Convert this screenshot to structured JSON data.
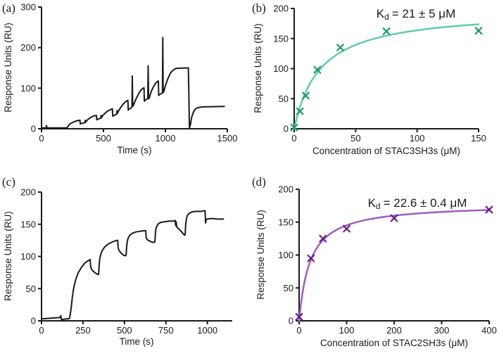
{
  "figure": {
    "background": "#ffffff",
    "axis_color": "#1a1a1a",
    "description": "Four-panel SPR figure: sensorgrams (a, c) and steady-state binding curves (b, d)"
  },
  "chart_data": [
    {
      "panel_label": "(a)",
      "type": "line",
      "xlabel": "Time (s)",
      "ylabel": "Response Units (RU)",
      "xlim": [
        0,
        1500
      ],
      "ylim": [
        0,
        300
      ],
      "xticks": [
        0,
        500,
        1000,
        1500
      ],
      "yticks": [
        0,
        100,
        200,
        300
      ],
      "grid": false,
      "line_color": "#1a1a1a",
      "series": [
        {
          "name": "sensorgram",
          "points": [
            [
              0,
              2
            ],
            [
              38,
              2
            ],
            [
              40,
              8
            ],
            [
              43,
              2
            ],
            [
              205,
              2
            ],
            [
              210,
              4
            ],
            [
              220,
              9
            ],
            [
              235,
              13
            ],
            [
              260,
              17
            ],
            [
              290,
              20
            ],
            [
              310,
              21
            ],
            [
              313,
              12
            ],
            [
              322,
              13
            ],
            [
              350,
              15
            ],
            [
              353,
              21
            ],
            [
              356,
              16
            ],
            [
              363,
              19
            ],
            [
              378,
              24
            ],
            [
              402,
              29
            ],
            [
              428,
              32
            ],
            [
              443,
              33
            ],
            [
              446,
              22
            ],
            [
              456,
              24
            ],
            [
              478,
              26
            ],
            [
              481,
              33
            ],
            [
              484,
              27
            ],
            [
              491,
              31
            ],
            [
              508,
              37
            ],
            [
              530,
              43
            ],
            [
              555,
              47
            ],
            [
              572,
              49
            ],
            [
              575,
              31
            ],
            [
              585,
              33
            ],
            [
              607,
              36
            ],
            [
              610,
              45
            ],
            [
              613,
              38
            ],
            [
              620,
              43
            ],
            [
              636,
              51
            ],
            [
              656,
              60
            ],
            [
              680,
              67
            ],
            [
              697,
              70
            ],
            [
              700,
              46
            ],
            [
              710,
              49
            ],
            [
              730,
              53
            ],
            [
              733,
              130
            ],
            [
              736,
              62
            ],
            [
              739,
              56
            ],
            [
              746,
              61
            ],
            [
              758,
              70
            ],
            [
              775,
              81
            ],
            [
              795,
              92
            ],
            [
              815,
              99
            ],
            [
              827,
              101
            ],
            [
              830,
              68
            ],
            [
              840,
              71
            ],
            [
              858,
              75
            ],
            [
              861,
              155
            ],
            [
              864,
              79
            ],
            [
              867,
              74
            ],
            [
              874,
              80
            ],
            [
              886,
              92
            ],
            [
              903,
              103
            ],
            [
              923,
              113
            ],
            [
              943,
              118
            ],
            [
              946,
              82
            ],
            [
              956,
              85
            ],
            [
              976,
              88
            ],
            [
              979,
              225
            ],
            [
              982,
              95
            ],
            [
              985,
              90
            ],
            [
              992,
              97
            ],
            [
              1004,
              110
            ],
            [
              1022,
              125
            ],
            [
              1042,
              138
            ],
            [
              1068,
              146
            ],
            [
              1090,
              149
            ],
            [
              1185,
              150
            ],
            [
              1190,
              80
            ],
            [
              1194,
              2
            ],
            [
              1202,
              10
            ],
            [
              1212,
              28
            ],
            [
              1225,
              40
            ],
            [
              1240,
              48
            ],
            [
              1262,
              52
            ],
            [
              1305,
              54
            ],
            [
              1480,
              55
            ]
          ]
        }
      ]
    },
    {
      "panel_label": "(b)",
      "type": "scatter",
      "annotation": {
        "k": "K",
        "sub": "d",
        "value": "= 21 ± 5 μM"
      },
      "xlabel": "Concentration of STAC3SH3s (μM)",
      "ylabel": "Response Units (RU)",
      "xlim": [
        0,
        150
      ],
      "ylim": [
        0,
        200
      ],
      "xticks": [
        0,
        50,
        100,
        150
      ],
      "yticks": [
        0,
        50,
        100,
        150,
        200
      ],
      "grid": false,
      "marker": "x",
      "marker_color": "#199d62",
      "curve_color": "#5ecda6",
      "points": [
        [
          0,
          2
        ],
        [
          4.7,
          29
        ],
        [
          9.4,
          55
        ],
        [
          18.8,
          98
        ],
        [
          37.5,
          135
        ],
        [
          75,
          162
        ],
        [
          150,
          163
        ]
      ],
      "fit": {
        "model": "one_site_binding",
        "bmax": 198,
        "kd": 21
      }
    },
    {
      "panel_label": "(c)",
      "type": "line",
      "xlabel": "Time (s)",
      "ylabel": "Response Units (RU)",
      "xlim": [
        0,
        1150
      ],
      "ylim": [
        0,
        200
      ],
      "xticks": [
        0,
        250,
        500,
        750,
        1000
      ],
      "yticks": [
        0,
        50,
        100,
        150,
        200
      ],
      "grid": false,
      "line_color": "#1a1a1a",
      "series": [
        {
          "name": "sensorgram",
          "points": [
            [
              0,
              3
            ],
            [
              55,
              4
            ],
            [
              110,
              5
            ],
            [
              116,
              8
            ],
            [
              120,
              2
            ],
            [
              150,
              3
            ],
            [
              163,
              3
            ],
            [
              168,
              4
            ],
            [
              172,
              8
            ],
            [
              178,
              18
            ],
            [
              185,
              35
            ],
            [
              193,
              50
            ],
            [
              205,
              63
            ],
            [
              220,
              74
            ],
            [
              240,
              83
            ],
            [
              262,
              90
            ],
            [
              285,
              94
            ],
            [
              293,
              95
            ],
            [
              296,
              84
            ],
            [
              302,
              80
            ],
            [
              312,
              77
            ],
            [
              326,
              74
            ],
            [
              340,
              72
            ],
            [
              344,
              72
            ],
            [
              348,
              88
            ],
            [
              352,
              97
            ],
            [
              358,
              104
            ],
            [
              368,
              110
            ],
            [
              382,
              115
            ],
            [
              400,
              119
            ],
            [
              422,
              122
            ],
            [
              443,
              124
            ],
            [
              455,
              125
            ],
            [
              459,
              125
            ],
            [
              462,
              113
            ],
            [
              468,
              109
            ],
            [
              480,
              105
            ],
            [
              494,
              102
            ],
            [
              506,
              101
            ],
            [
              510,
              102
            ],
            [
              513,
              115
            ],
            [
              517,
              123
            ],
            [
              523,
              129
            ],
            [
              533,
              133
            ],
            [
              548,
              136
            ],
            [
              568,
              138
            ],
            [
              592,
              139
            ],
            [
              618,
              140
            ],
            [
              628,
              140
            ],
            [
              631,
              129
            ],
            [
              638,
              126
            ],
            [
              652,
              124
            ],
            [
              668,
              122
            ],
            [
              681,
              122
            ],
            [
              684,
              124
            ],
            [
              687,
              138
            ],
            [
              691,
              144
            ],
            [
              697,
              148
            ],
            [
              706,
              151
            ],
            [
              720,
              153
            ],
            [
              742,
              154
            ],
            [
              770,
              155
            ],
            [
              800,
              155
            ],
            [
              806,
              156
            ],
            [
              809,
              148
            ],
            [
              812,
              154
            ],
            [
              815,
              146
            ],
            [
              822,
              144
            ],
            [
              838,
              140
            ],
            [
              852,
              136
            ],
            [
              862,
              133
            ],
            [
              866,
              134
            ],
            [
              869,
              150
            ],
            [
              874,
              159
            ],
            [
              880,
              164
            ],
            [
              890,
              167
            ],
            [
              905,
              169
            ],
            [
              925,
              170
            ],
            [
              960,
              170
            ],
            [
              983,
              171
            ],
            [
              986,
              171
            ],
            [
              989,
              152
            ],
            [
              993,
              157
            ],
            [
              998,
              158
            ],
            [
              1030,
              159
            ],
            [
              1060,
              158
            ],
            [
              1100,
              158
            ]
          ]
        }
      ]
    },
    {
      "panel_label": "(d)",
      "type": "scatter",
      "annotation": {
        "k": "K",
        "sub": "d",
        "value": "= 22.6 ± 0.4 μM"
      },
      "xlabel": "Concentration of STAC2SH3s (μM)",
      "ylabel": "Response Units (RU)",
      "xlim": [
        0,
        400
      ],
      "ylim": [
        0,
        200
      ],
      "xticks": [
        0,
        100,
        200,
        300,
        400
      ],
      "yticks": [
        0,
        50,
        100,
        150,
        200
      ],
      "grid": false,
      "marker": "x",
      "marker_color": "#6b1d8c",
      "curve_color": "#a05cc2",
      "points": [
        [
          0,
          6
        ],
        [
          25,
          95
        ],
        [
          50,
          125
        ],
        [
          100,
          140
        ],
        [
          200,
          156
        ],
        [
          400,
          169
        ]
      ],
      "fit": {
        "model": "one_site_binding",
        "bmax": 178,
        "kd": 22.6
      }
    }
  ]
}
